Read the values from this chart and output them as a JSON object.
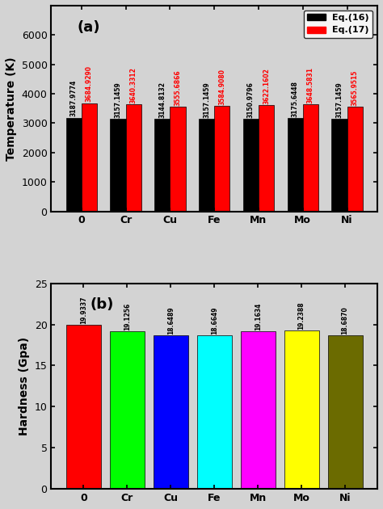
{
  "categories": [
    "0",
    "Cr",
    "Cu",
    "Fe",
    "Mn",
    "Mo",
    "Ni"
  ],
  "temp_black": [
    3187.9774,
    3157.1459,
    3144.8132,
    3157.1459,
    3150.9796,
    3175.6448,
    3157.1459
  ],
  "temp_red": [
    3684.929,
    3640.3312,
    3555.6866,
    3584.908,
    3622.1602,
    3648.5831,
    3565.9515
  ],
  "hardness_values": [
    19.9337,
    19.1256,
    18.6489,
    18.6649,
    19.1634,
    19.2388,
    18.687
  ],
  "hardness_colors": [
    "#ff0000",
    "#00ff00",
    "#0000ff",
    "#00ffff",
    "#ff00ff",
    "#ffff00",
    "#6b6b00"
  ],
  "ylim_temp": [
    0,
    7000
  ],
  "ylim_hard": [
    0,
    25
  ],
  "ylabel_temp": "Temperature (K)",
  "ylabel_hard": "Hardness (Gpa)",
  "label_eq16": "Eq.(16)",
  "label_eq17": "Eq.(17)",
  "panel_a_label": "(a)",
  "panel_b_label": "(b)",
  "bar_width": 0.35,
  "black_color": "#000000",
  "red_color": "#ff0000",
  "background_color": "#d3d3d3"
}
